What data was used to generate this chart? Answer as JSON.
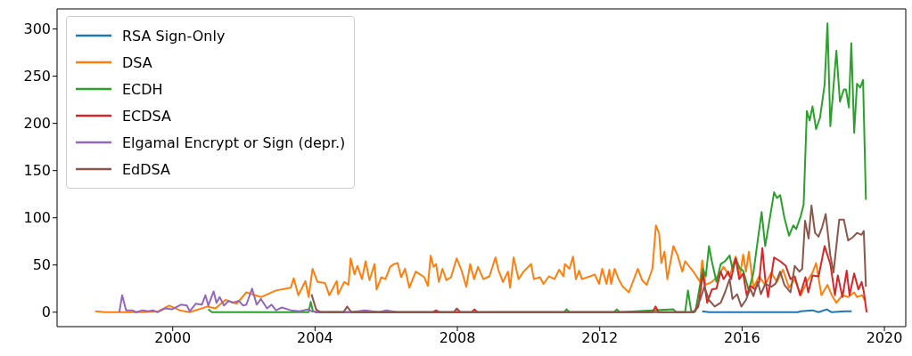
{
  "chart_data": {
    "type": "line",
    "legend": "top left",
    "xlim": [
      1996.75,
      2020.6
    ],
    "xticks": [
      2000,
      2004,
      2008,
      2012,
      2016,
      2020
    ],
    "ylim": [
      -15.3,
      321.3
    ],
    "yticks": [
      0,
      50,
      100,
      150,
      200,
      250,
      300
    ],
    "series": [
      {
        "name": "RSA Sign-Only",
        "color": "#1f77b4",
        "x": [
          2014.88,
          2015.07,
          2017.57,
          2017.65,
          2017.98,
          2018.15,
          2018.38,
          2018.52,
          2018.9,
          2019.08
        ],
        "values": [
          1,
          0,
          0,
          1,
          2,
          0,
          3,
          0,
          1,
          1
        ]
      },
      {
        "name": "DSA",
        "color": "#ff7f0e",
        "x": [
          1997.82,
          1998.1,
          1998.6,
          1999.2,
          1999.6,
          1999.9,
          2000.2,
          2000.48,
          2000.98,
          2001.2,
          2001.48,
          2001.8,
          2002.07,
          2002.48,
          2002.9,
          2003.32,
          2003.4,
          2003.53,
          2003.73,
          2003.82,
          2003.93,
          2004.07,
          2004.28,
          2004.4,
          2004.61,
          2004.65,
          2004.82,
          2004.94,
          2005.0,
          2005.11,
          2005.19,
          2005.32,
          2005.42,
          2005.53,
          2005.67,
          2005.73,
          2005.86,
          2005.98,
          2006.11,
          2006.22,
          2006.32,
          2006.42,
          2006.53,
          2006.65,
          2006.83,
          2007.07,
          2007.17,
          2007.25,
          2007.33,
          2007.4,
          2007.48,
          2007.58,
          2007.69,
          2007.82,
          2007.98,
          2008.11,
          2008.25,
          2008.36,
          2008.47,
          2008.58,
          2008.73,
          2008.9,
          2009.07,
          2009.15,
          2009.28,
          2009.42,
          2009.48,
          2009.58,
          2009.72,
          2009.86,
          2010.07,
          2010.15,
          2010.32,
          2010.42,
          2010.57,
          2010.73,
          2010.86,
          2010.98,
          2011.02,
          2011.15,
          2011.25,
          2011.33,
          2011.42,
          2011.5,
          2011.73,
          2011.86,
          2011.98,
          2012.07,
          2012.19,
          2012.27,
          2012.32,
          2012.42,
          2012.53,
          2012.65,
          2012.82,
          2013.07,
          2013.19,
          2013.32,
          2013.48,
          2013.58,
          2013.67,
          2013.73,
          2013.82,
          2013.9,
          2014.07,
          2014.19,
          2014.32,
          2014.4,
          2014.65,
          2014.82,
          2014.88,
          2014.97,
          2015.15,
          2015.32,
          2015.48,
          2015.65,
          2015.82,
          2015.94,
          2016.03,
          2016.11,
          2016.19,
          2016.32,
          2016.48,
          2016.65,
          2016.82,
          2016.98,
          2017.15,
          2017.32,
          2017.48,
          2017.65,
          2017.82,
          2017.98,
          2018.08,
          2018.23,
          2018.4,
          2018.52,
          2018.65,
          2018.82,
          2018.98,
          2019.15,
          2019.23,
          2019.38,
          2019.44
        ],
        "values": [
          1,
          0,
          0,
          0,
          1,
          7,
          2,
          0,
          6,
          4,
          13,
          9,
          21,
          16,
          23,
          26,
          36,
          18,
          33,
          16,
          46,
          32,
          31,
          18,
          33,
          19,
          32,
          29,
          57,
          40,
          49,
          35,
          54,
          34,
          51,
          24,
          37,
          35,
          48,
          51,
          52,
          37,
          46,
          26,
          43,
          37,
          28,
          60,
          48,
          51,
          32,
          46,
          34,
          37,
          57,
          45,
          27,
          51,
          35,
          48,
          35,
          38,
          58,
          45,
          32,
          43,
          26,
          58,
          35,
          43,
          51,
          35,
          37,
          30,
          38,
          35,
          45,
          38,
          51,
          46,
          59,
          35,
          44,
          35,
          38,
          40,
          30,
          46,
          30,
          45,
          30,
          46,
          35,
          27,
          21,
          46,
          34,
          29,
          46,
          92,
          83,
          52,
          64,
          35,
          70,
          60,
          43,
          54,
          42,
          32,
          55,
          29,
          32,
          38,
          48,
          38,
          59,
          38,
          61,
          43,
          64,
          26,
          38,
          29,
          42,
          32,
          45,
          26,
          35,
          18,
          32,
          42,
          52,
          18,
          29,
          18,
          10,
          18,
          16,
          21,
          16,
          18,
          13
        ]
      },
      {
        "name": "ECDH",
        "color": "#2ca02c",
        "x": [
          2001.0,
          2001.1,
          2003.82,
          2003.88,
          2003.94,
          2004.1,
          2011.0,
          2011.07,
          2011.15,
          2012.4,
          2012.48,
          2012.56,
          2014.07,
          2014.15,
          2014.4,
          2014.48,
          2014.57,
          2014.69,
          2014.9,
          2014.98,
          2015.07,
          2015.15,
          2015.28,
          2015.4,
          2015.52,
          2015.65,
          2015.73,
          2015.82,
          2015.94,
          2016.03,
          2016.19,
          2016.32,
          2016.44,
          2016.55,
          2016.65,
          2016.9,
          2016.98,
          2017.07,
          2017.19,
          2017.32,
          2017.44,
          2017.52,
          2017.65,
          2017.73,
          2017.82,
          2017.9,
          2017.98,
          2018.08,
          2018.19,
          2018.32,
          2018.4,
          2018.48,
          2018.65,
          2018.75,
          2018.86,
          2018.92,
          2019.0,
          2019.07,
          2019.15,
          2019.23,
          2019.32,
          2019.4,
          2019.48
        ],
        "values": [
          3,
          0,
          0,
          11,
          1,
          0,
          0,
          3,
          0,
          0,
          3,
          0,
          3,
          0,
          0,
          23,
          1,
          1,
          46,
          38,
          70,
          54,
          32,
          51,
          54,
          60,
          46,
          57,
          46,
          44,
          23,
          42,
          76,
          106,
          70,
          127,
          121,
          124,
          100,
          81,
          92,
          88,
          102,
          114,
          213,
          203,
          218,
          194,
          206,
          241,
          306,
          197,
          277,
          223,
          236,
          236,
          217,
          285,
          190,
          242,
          238,
          246,
          119
        ]
      },
      {
        "name": "ECDSA",
        "color": "#d62728",
        "x": [
          2004.0,
          2008.4,
          2008.48,
          2008.56,
          2013.48,
          2013.57,
          2013.65,
          2014.65,
          2014.77,
          2014.9,
          2015.02,
          2015.15,
          2015.28,
          2015.4,
          2015.48,
          2015.61,
          2015.69,
          2015.82,
          2015.92,
          2016.03,
          2016.13,
          2016.23,
          2016.36,
          2016.48,
          2016.57,
          2016.65,
          2016.73,
          2016.9,
          2017.07,
          2017.23,
          2017.36,
          2017.48,
          2017.63,
          2017.78,
          2017.86,
          2017.98,
          2018.15,
          2018.32,
          2018.48,
          2018.61,
          2018.69,
          2018.82,
          2018.94,
          2019.02,
          2019.15,
          2019.27,
          2019.36,
          2019.42,
          2019.5
        ],
        "values": [
          0,
          0,
          3,
          0,
          0,
          6,
          0,
          0,
          6,
          41,
          10,
          24,
          25,
          43,
          35,
          43,
          35,
          57,
          35,
          41,
          18,
          28,
          24,
          32,
          68,
          35,
          16,
          58,
          54,
          49,
          35,
          38,
          18,
          37,
          21,
          39,
          38,
          70,
          51,
          18,
          39,
          16,
          44,
          18,
          41,
          24,
          32,
          22,
          0
        ]
      },
      {
        "name": "Elgamal Encrypt or Sign (depr.)",
        "color": "#9467bd",
        "x": [
          1998.5,
          1998.58,
          1998.69,
          1998.86,
          1998.98,
          1999.15,
          1999.32,
          1999.44,
          1999.57,
          1999.78,
          1999.98,
          2000.23,
          2000.4,
          2000.48,
          2000.65,
          2000.82,
          2000.92,
          2001.0,
          2001.15,
          2001.23,
          2001.32,
          2001.44,
          2001.57,
          2001.69,
          2001.86,
          2001.98,
          2002.07,
          2002.23,
          2002.36,
          2002.48,
          2002.65,
          2002.78,
          2002.9,
          2003.07,
          2003.32,
          2003.57,
          2003.82,
          2003.9,
          2004.07,
          2005.0,
          2005.4,
          2005.8,
          2006.0,
          2006.3
        ],
        "values": [
          0,
          18,
          2,
          2,
          0,
          2,
          1,
          2,
          0,
          4,
          3,
          8,
          7,
          1,
          9,
          8,
          18,
          7,
          22,
          10,
          16,
          7,
          12,
          10,
          12,
          7,
          8,
          25,
          8,
          14,
          4,
          8,
          2,
          5,
          2,
          1,
          3,
          1,
          0,
          0,
          2,
          0,
          2,
          0
        ]
      },
      {
        "name": "EdDSA",
        "color": "#8c564b",
        "x": [
          2003.9,
          2004.03,
          2004.15,
          2004.8,
          2004.9,
          2005.02,
          2007.3,
          2007.4,
          2007.5,
          2007.9,
          2007.98,
          2008.08,
          2014.65,
          2014.82,
          2014.94,
          2015.07,
          2015.23,
          2015.4,
          2015.52,
          2015.65,
          2015.73,
          2015.86,
          2015.98,
          2016.11,
          2016.23,
          2016.32,
          2016.44,
          2016.53,
          2016.65,
          2016.82,
          2016.94,
          2017.07,
          2017.19,
          2017.36,
          2017.48,
          2017.61,
          2017.69,
          2017.77,
          2017.87,
          2017.95,
          2018.05,
          2018.15,
          2018.25,
          2018.35,
          2018.48,
          2018.57,
          2018.73,
          2018.86,
          2018.98,
          2019.1,
          2019.23,
          2019.36,
          2019.42,
          2019.48
        ],
        "values": [
          19,
          3,
          0,
          0,
          6,
          0,
          0,
          2,
          0,
          0,
          4,
          0,
          0,
          13,
          27,
          13,
          6,
          10,
          21,
          35,
          14,
          19,
          6,
          13,
          25,
          17,
          32,
          19,
          30,
          27,
          30,
          43,
          29,
          21,
          49,
          43,
          46,
          97,
          78,
          113,
          84,
          80,
          90,
          104,
          60,
          42,
          98,
          98,
          76,
          79,
          84,
          82,
          86,
          27
        ]
      }
    ]
  }
}
